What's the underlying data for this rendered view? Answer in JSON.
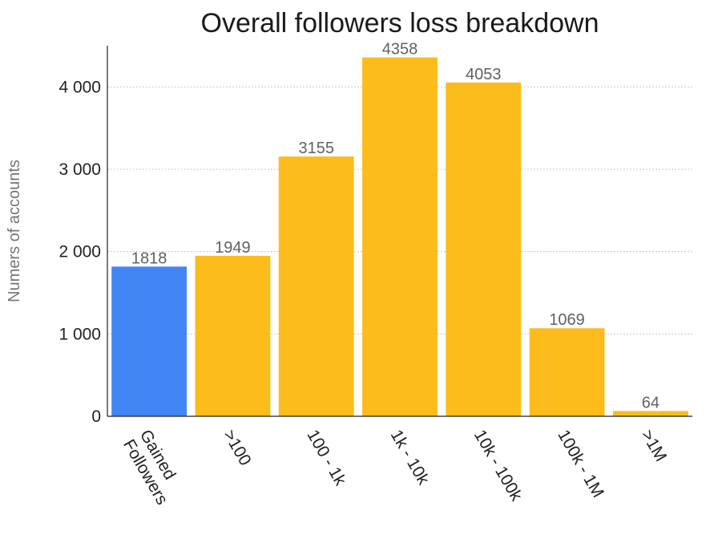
{
  "chart_data": {
    "type": "bar",
    "title": "Overall followers loss breakdown",
    "xlabel": "",
    "ylabel": "Numers of accounts",
    "categories": [
      [
        "Gained",
        "Followers"
      ],
      [
        ">100"
      ],
      [
        "100 - 1k"
      ],
      [
        "1k - 10k"
      ],
      [
        "10k - 100k"
      ],
      [
        "100k - 1M"
      ],
      [
        ">1M"
      ]
    ],
    "values": [
      1818,
      1949,
      3155,
      4358,
      4053,
      1069,
      64
    ],
    "bar_colors": [
      "#4285f4",
      "#fbbc1c",
      "#fbbc1c",
      "#fbbc1c",
      "#fbbc1c",
      "#fbbc1c",
      "#fbbc1c"
    ],
    "ylim": [
      0,
      4500
    ],
    "yticks": [
      0,
      1000,
      2000,
      3000,
      4000
    ],
    "ytick_labels": [
      "0",
      "1 000",
      "2 000",
      "3 000",
      "4 000"
    ],
    "grid": true,
    "legend": "none"
  }
}
